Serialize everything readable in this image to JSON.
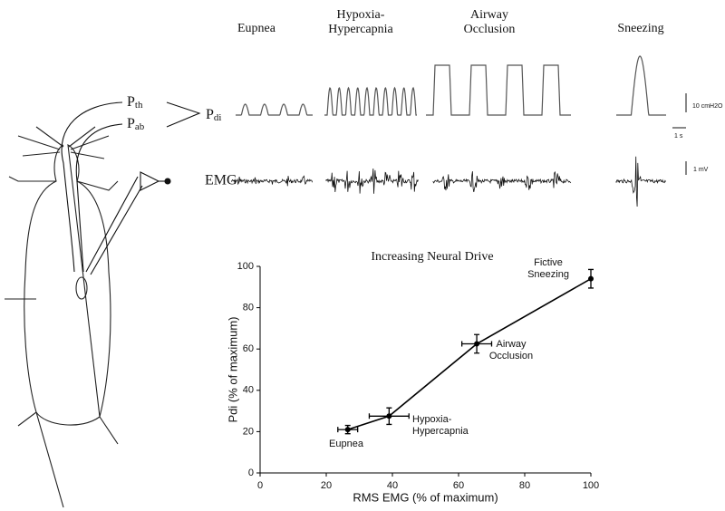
{
  "conditions": [
    {
      "lines": [
        "Eupnea"
      ]
    },
    {
      "lines": [
        "Hypoxia-",
        "Hypercapnia"
      ]
    },
    {
      "lines": [
        "Airway",
        "Occlusion"
      ]
    },
    {
      "lines": [
        "Sneezing"
      ]
    }
  ],
  "signals": {
    "p_th": {
      "main": "P",
      "sub": "th"
    },
    "p_ab": {
      "main": "P",
      "sub": "ab"
    },
    "p_di": {
      "main": "P",
      "sub": "di"
    },
    "emg": "EMG"
  },
  "scale_bars": {
    "pressure": "10 cmH2O",
    "time": "1 s",
    "voltage": "1 mV"
  },
  "chart_data": {
    "type": "line",
    "title": "Increasing Neural Drive",
    "x_label": "RMS EMG (% of maximum)",
    "y_label": "Pdi (% of maximum)",
    "x": [
      26.5,
      39,
      65.5,
      100
    ],
    "values": [
      21,
      27.5,
      62.5,
      94
    ],
    "x_errors": [
      3,
      6,
      4.5,
      0
    ],
    "y_errors": [
      2,
      4,
      4.5,
      4.5
    ],
    "point_labels": [
      [
        "Eupnea"
      ],
      [
        "Hypoxia-",
        "Hypercapnia"
      ],
      [
        "Airway",
        "Occlusion"
      ],
      [
        "Fictive",
        "Sneezing"
      ]
    ],
    "color": "#000000",
    "xlim": [
      0,
      100
    ],
    "ylim": [
      0,
      100
    ],
    "xticks": [
      0,
      20,
      40,
      60,
      80,
      100
    ],
    "yticks": [
      0,
      20,
      40,
      60,
      80,
      100
    ]
  }
}
